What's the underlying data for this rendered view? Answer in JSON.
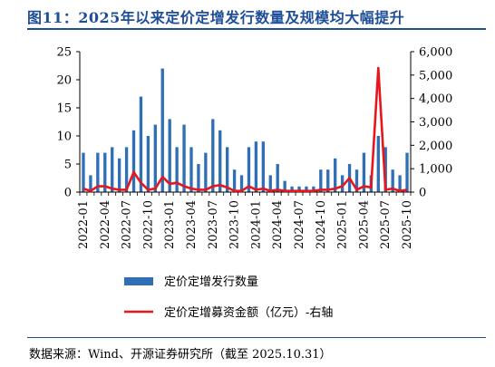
{
  "header": {
    "title": "图11：2025年以来定价定增发行数量及规模均大幅提升"
  },
  "footer": {
    "source": "数据来源：Wind、开源证券研究所（截至 2025.10.31）"
  },
  "colors": {
    "bar": "#2e6fb5",
    "line": "#e8161b",
    "title": "#1f4e99"
  },
  "chart_data": {
    "type": "bar",
    "categories": [
      "2022-01",
      "2022-02",
      "2022-03",
      "2022-04",
      "2022-05",
      "2022-06",
      "2022-07",
      "2022-08",
      "2022-09",
      "2022-10",
      "2022-11",
      "2022-12",
      "2023-01",
      "2023-02",
      "2023-03",
      "2023-04",
      "2023-05",
      "2023-06",
      "2023-07",
      "2023-08",
      "2023-09",
      "2023-10",
      "2023-11",
      "2023-12",
      "2024-01",
      "2024-02",
      "2024-03",
      "2024-04",
      "2024-05",
      "2024-06",
      "2024-07",
      "2024-08",
      "2024-09",
      "2024-10",
      "2024-11",
      "2024-12",
      "2025-01",
      "2025-02",
      "2025-03",
      "2025-04",
      "2025-05",
      "2025-06",
      "2025-07",
      "2025-08",
      "2025-09",
      "2025-10"
    ],
    "tick_labels": [
      "2022-01",
      "2022-04",
      "2022-07",
      "2022-10",
      "2023-01",
      "2023-04",
      "2023-07",
      "2023-10",
      "2024-01",
      "2024-04",
      "2024-07",
      "2024-10",
      "2025-01",
      "2025-04",
      "2025-07",
      "2025-10"
    ],
    "series": [
      {
        "name": "定价定增发行数量",
        "kind": "bar",
        "axis": "left",
        "values": [
          7,
          3,
          7,
          7,
          8,
          6,
          8,
          11,
          17,
          10,
          12,
          22,
          13,
          8,
          12,
          8,
          5,
          7,
          13,
          11,
          8,
          4,
          3,
          8,
          9,
          9,
          3,
          5,
          2,
          1,
          1,
          1,
          1,
          4,
          4,
          6,
          3,
          5,
          4,
          7,
          3,
          10,
          8,
          4,
          3,
          7
        ]
      },
      {
        "name": "定价定增募资金额（亿元）-右轴",
        "kind": "line",
        "axis": "right",
        "values": [
          150,
          50,
          250,
          250,
          150,
          100,
          100,
          850,
          400,
          100,
          150,
          650,
          350,
          400,
          250,
          150,
          100,
          100,
          250,
          300,
          200,
          50,
          50,
          250,
          100,
          150,
          50,
          100,
          50,
          50,
          50,
          50,
          50,
          100,
          100,
          150,
          250,
          600,
          100,
          250,
          200,
          5300,
          100,
          150,
          50,
          100
        ]
      }
    ],
    "y_left": {
      "min": 0,
      "max": 25,
      "ticks": [
        0,
        5,
        10,
        15,
        20,
        25
      ]
    },
    "y_right": {
      "min": 0,
      "max": 6000,
      "ticks": [
        "0",
        "1,000",
        "2,000",
        "3,000",
        "4,000",
        "5,000",
        "6,000"
      ]
    },
    "legend": [
      "定价定增发行数量",
      "定价定增募资金额（亿元）-右轴"
    ],
    "legend_position": "bottom",
    "grid": false
  }
}
